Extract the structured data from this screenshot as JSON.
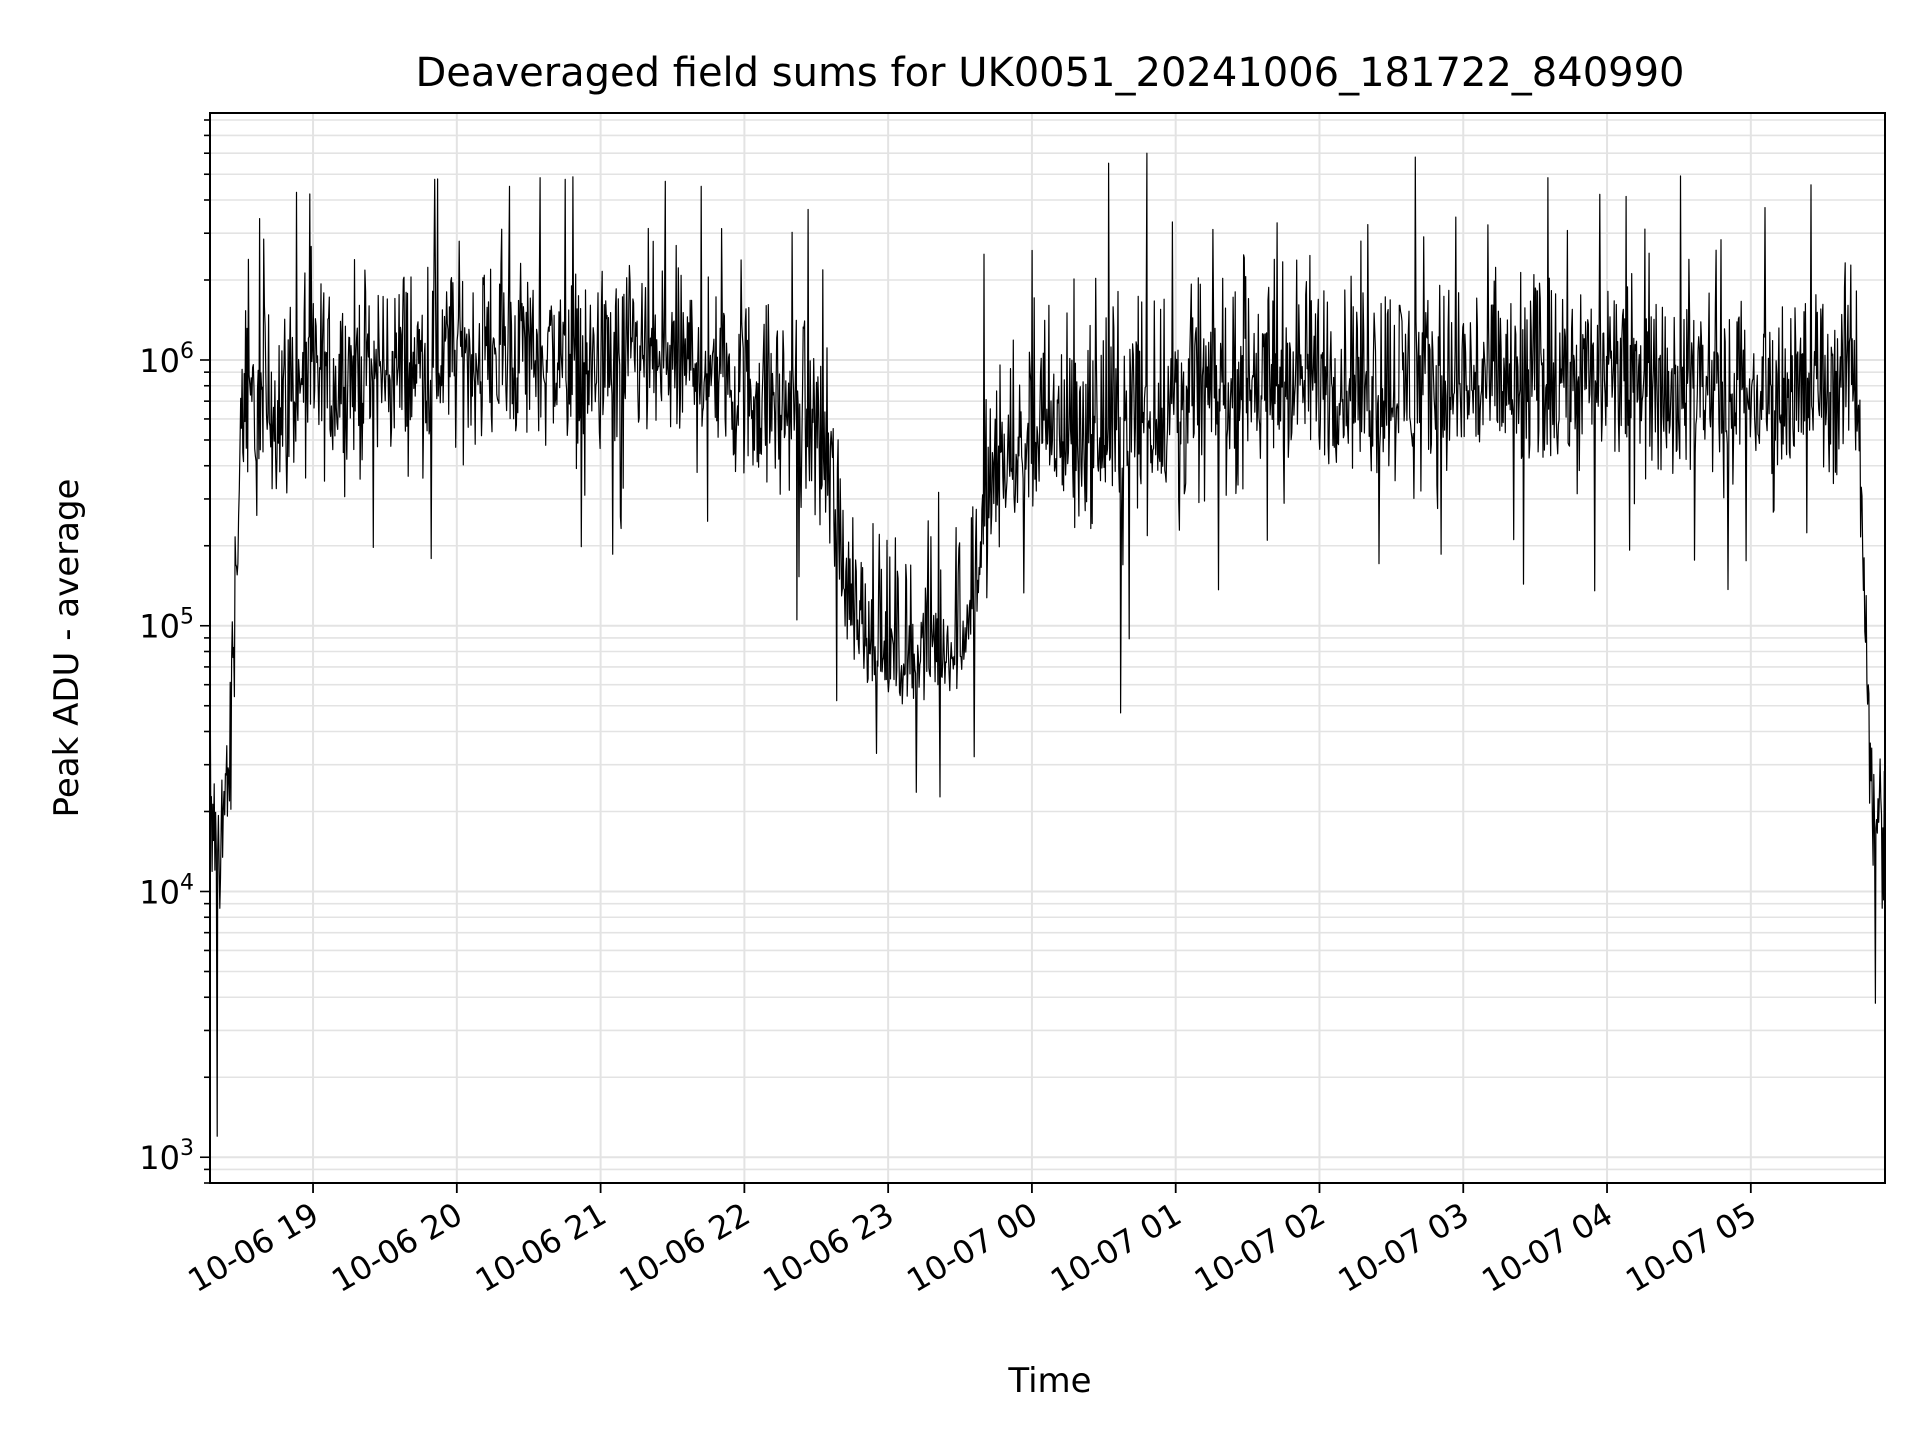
{
  "chart_data": {
    "type": "line",
    "title": "Deaveraged field sums for UK0051_20241006_181722_840990",
    "xlabel": "Time",
    "ylabel": "Peak ADU - average",
    "yscale": "log",
    "ylim": [
      800,
      8500000
    ],
    "xlim": [
      "2024-10-06 18:17",
      "2024-10-07 05:56"
    ],
    "grid": true,
    "line_color": "#000000",
    "x_tick_labels": [
      "10-06 19",
      "10-06 20",
      "10-06 21",
      "10-06 22",
      "10-06 23",
      "10-07 00",
      "10-07 01",
      "10-07 02",
      "10-07 03",
      "10-07 04",
      "10-07 05"
    ],
    "x_tick_times": [
      "2024-10-06 19:00",
      "2024-10-06 20:00",
      "2024-10-06 21:00",
      "2024-10-06 22:00",
      "2024-10-06 23:00",
      "2024-10-07 00:00",
      "2024-10-07 01:00",
      "2024-10-07 02:00",
      "2024-10-07 03:00",
      "2024-10-07 04:00",
      "2024-10-07 05:00"
    ],
    "y_ticks": [
      {
        "base": "10",
        "exp": "3",
        "value": 1000
      },
      {
        "base": "10",
        "exp": "4",
        "value": 10000
      },
      {
        "base": "10",
        "exp": "5",
        "value": 100000
      },
      {
        "base": "10",
        "exp": "6",
        "value": 1000000
      }
    ],
    "series": [
      {
        "x": [
          "2024-10-06 18:17",
          "2024-10-06 18:20",
          "2024-10-06 18:25",
          "2024-10-06 18:30",
          "2024-10-06 18:45",
          "2024-10-06 19:00",
          "2024-10-06 19:30",
          "2024-10-06 20:00",
          "2024-10-06 20:30",
          "2024-10-06 21:00",
          "2024-10-06 21:30",
          "2024-10-06 22:00",
          "2024-10-06 22:30",
          "2024-10-06 22:45",
          "2024-10-06 23:00",
          "2024-10-06 23:15",
          "2024-10-06 23:30",
          "2024-10-06 23:45",
          "2024-10-07 00:00",
          "2024-10-07 00:30",
          "2024-10-07 01:00",
          "2024-10-07 01:30",
          "2024-10-07 02:00",
          "2024-10-07 02:30",
          "2024-10-07 03:00",
          "2024-10-07 03:30",
          "2024-10-07 04:00",
          "2024-10-07 04:30",
          "2024-10-07 05:00",
          "2024-10-07 05:30",
          "2024-10-07 05:45",
          "2024-10-07 05:50",
          "2024-10-07 05:56"
        ],
        "median": [
          20000,
          15000,
          30000,
          600000,
          700000,
          800000,
          900000,
          1000000,
          1100000,
          900000,
          1000000,
          800000,
          600000,
          120000,
          70000,
          75000,
          80000,
          350000,
          500000,
          500000,
          700000,
          800000,
          850000,
          800000,
          800000,
          800000,
          850000,
          850000,
          700000,
          800000,
          900000,
          25000,
          20000
        ],
        "band_low": [
          5000,
          4000,
          8000,
          150000,
          200000,
          250000,
          300000,
          350000,
          350000,
          300000,
          300000,
          250000,
          150000,
          55000,
          45000,
          45000,
          50000,
          150000,
          200000,
          180000,
          200000,
          250000,
          280000,
          250000,
          250000,
          250000,
          260000,
          250000,
          200000,
          250000,
          250000,
          8000,
          6000
        ],
        "band_high": [
          40000,
          40000,
          60000,
          2500000,
          2500000,
          3000000,
          3500000,
          3500000,
          4000000,
          3000000,
          3500000,
          2500000,
          2000000,
          600000,
          300000,
          300000,
          500000,
          1500000,
          2500000,
          3000000,
          3500000,
          3500000,
          3500000,
          3500000,
          3500000,
          3500000,
          3500000,
          3000000,
          3000000,
          3000000,
          3000000,
          50000,
          40000
        ],
        "peaks": [
          {
            "x": "2024-10-06 18:20",
            "y": 1200
          },
          {
            "x": "2024-10-06 19:52",
            "y": 4800000
          },
          {
            "x": "2024-10-06 20:22",
            "y": 4500000
          },
          {
            "x": "2024-10-06 21:27",
            "y": 4700000
          },
          {
            "x": "2024-10-06 21:42",
            "y": 4500000
          },
          {
            "x": "2024-10-06 23:40",
            "y": 2500000
          },
          {
            "x": "2024-10-07 00:32",
            "y": 5500000
          },
          {
            "x": "2024-10-07 00:48",
            "y": 6000000
          },
          {
            "x": "2024-10-07 00:37",
            "y": 47000
          },
          {
            "x": "2024-10-07 02:40",
            "y": 5800000
          },
          {
            "x": "2024-10-07 03:57",
            "y": 4200000
          },
          {
            "x": "2024-10-07 05:52",
            "y": 3800
          }
        ]
      }
    ]
  }
}
